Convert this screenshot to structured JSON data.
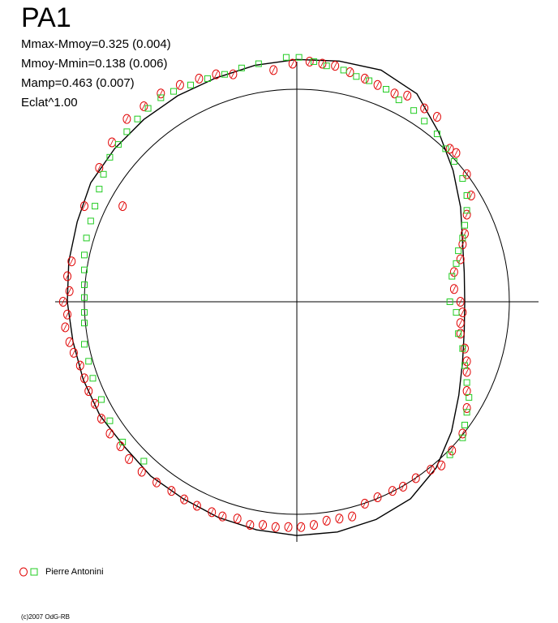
{
  "header": {
    "title": "PA1",
    "stats": [
      "Mmax-Mmoy=0.325 (0.004)",
      "Mmoy-Mmin=0.138 (0.006)",
      "Mamp=0.463 (0.007)",
      "Eclat^1.00"
    ]
  },
  "legend": {
    "label": "Pierre Antonini"
  },
  "footer": {
    "copyright": "(c)2007 OdG-RB"
  },
  "colors": {
    "series_circle": "#e00000",
    "series_square": "#22cc22",
    "axes": "#000000",
    "curve": "#000000"
  },
  "chart_data": {
    "type": "scatter",
    "projection": "polar",
    "reference_circle_radius": 1.0,
    "series": [
      {
        "name": "Pierre Antonini",
        "marker": "circle",
        "color": "#e00000",
        "points": [
          [
            -0.11,
            1.09
          ],
          [
            -0.02,
            1.12
          ],
          [
            0.06,
            1.13
          ],
          [
            0.12,
            1.12
          ],
          [
            0.18,
            1.11
          ],
          [
            0.25,
            1.08
          ],
          [
            -0.3,
            1.07
          ],
          [
            0.32,
            1.05
          ],
          [
            0.38,
            1.02
          ],
          [
            0.46,
            0.98
          ],
          [
            0.52,
            0.97
          ],
          [
            0.6,
            0.91
          ],
          [
            0.66,
            0.87
          ],
          [
            0.72,
            0.72
          ],
          [
            0.75,
            0.7
          ],
          [
            0.8,
            0.6
          ],
          [
            0.82,
            0.5
          ],
          [
            0.8,
            0.41
          ],
          [
            0.79,
            0.32
          ],
          [
            0.78,
            0.27
          ],
          [
            0.77,
            0.2
          ],
          [
            0.74,
            0.14
          ],
          [
            0.74,
            0.06
          ],
          [
            0.77,
            0.0
          ],
          [
            0.78,
            -0.05
          ],
          [
            0.77,
            -0.1
          ],
          [
            0.77,
            -0.15
          ],
          [
            0.79,
            -0.22
          ],
          [
            0.8,
            -0.28
          ],
          [
            0.8,
            -0.33
          ],
          [
            0.8,
            -0.42
          ],
          [
            0.8,
            -0.5
          ],
          [
            0.78,
            -0.62
          ],
          [
            0.73,
            -0.7
          ],
          [
            0.68,
            -0.77
          ],
          [
            0.63,
            -0.79
          ],
          [
            0.56,
            -0.83
          ],
          [
            0.5,
            -0.87
          ],
          [
            0.45,
            -0.89
          ],
          [
            0.38,
            -0.92
          ],
          [
            0.32,
            -0.95
          ],
          [
            0.26,
            -1.01
          ],
          [
            0.2,
            -1.02
          ],
          [
            0.14,
            -1.03
          ],
          [
            0.08,
            -1.05
          ],
          [
            0.02,
            -1.06
          ],
          [
            -0.04,
            -1.06
          ],
          [
            -0.1,
            -1.06
          ],
          [
            -0.16,
            -1.05
          ],
          [
            -0.22,
            -1.05
          ],
          [
            -0.28,
            -1.02
          ],
          [
            -0.35,
            -1.01
          ],
          [
            -0.4,
            -0.99
          ],
          [
            -0.47,
            -0.96
          ],
          [
            -0.53,
            -0.93
          ],
          [
            -0.59,
            -0.89
          ],
          [
            -0.66,
            -0.85
          ],
          [
            -0.73,
            -0.8
          ],
          [
            -0.79,
            -0.74
          ],
          [
            -0.83,
            -0.68
          ],
          [
            -0.88,
            -0.62
          ],
          [
            -0.92,
            -0.55
          ],
          [
            -0.95,
            -0.48
          ],
          [
            -0.98,
            -0.42
          ],
          [
            -1.0,
            -0.36
          ],
          [
            -1.02,
            -0.3
          ],
          [
            -1.05,
            -0.24
          ],
          [
            -1.07,
            -0.19
          ],
          [
            -1.09,
            -0.12
          ],
          [
            -1.08,
            -0.06
          ],
          [
            -1.1,
            0.0
          ],
          [
            -1.07,
            0.05
          ],
          [
            -1.08,
            0.12
          ],
          [
            -1.06,
            0.19
          ],
          [
            -1.0,
            0.45
          ],
          [
            -0.82,
            0.45
          ],
          [
            -0.93,
            0.63
          ],
          [
            -0.87,
            0.75
          ],
          [
            -0.8,
            0.86
          ],
          [
            -0.72,
            0.92
          ],
          [
            -0.64,
            0.98
          ],
          [
            -0.55,
            1.02
          ],
          [
            -0.46,
            1.05
          ],
          [
            -0.38,
            1.07
          ]
        ]
      },
      {
        "name": "",
        "marker": "square",
        "color": "#22cc22",
        "points": [
          [
            -0.18,
            1.12
          ],
          [
            -0.05,
            1.15
          ],
          [
            0.01,
            1.15
          ],
          [
            0.08,
            1.13
          ],
          [
            0.14,
            1.11
          ],
          [
            0.22,
            1.09
          ],
          [
            0.28,
            1.06
          ],
          [
            0.34,
            1.04
          ],
          [
            0.42,
            1.0
          ],
          [
            0.48,
            0.95
          ],
          [
            0.55,
            0.9
          ],
          [
            0.6,
            0.85
          ],
          [
            0.66,
            0.79
          ],
          [
            0.7,
            0.72
          ],
          [
            0.74,
            0.66
          ],
          [
            0.78,
            0.58
          ],
          [
            0.8,
            0.5
          ],
          [
            0.8,
            0.43
          ],
          [
            0.79,
            0.36
          ],
          [
            0.78,
            0.3
          ],
          [
            0.76,
            0.24
          ],
          [
            0.75,
            0.18
          ],
          [
            0.73,
            0.12
          ],
          [
            0.72,
            0.0
          ],
          [
            0.75,
            -0.05
          ],
          [
            0.76,
            -0.15
          ],
          [
            0.78,
            -0.22
          ],
          [
            0.79,
            -0.3
          ],
          [
            0.8,
            -0.38
          ],
          [
            0.81,
            -0.45
          ],
          [
            0.8,
            -0.52
          ],
          [
            0.79,
            -0.58
          ],
          [
            0.78,
            -0.64
          ],
          [
            0.72,
            -0.72
          ],
          [
            -0.26,
            1.1
          ],
          [
            -0.34,
            1.07
          ],
          [
            -0.42,
            1.05
          ],
          [
            -0.5,
            1.02
          ],
          [
            -0.58,
            0.99
          ],
          [
            -0.64,
            0.96
          ],
          [
            -0.7,
            0.91
          ],
          [
            -0.75,
            0.86
          ],
          [
            -0.8,
            0.8
          ],
          [
            -0.84,
            0.74
          ],
          [
            -0.88,
            0.68
          ],
          [
            -0.91,
            0.6
          ],
          [
            -0.93,
            0.53
          ],
          [
            -0.95,
            0.45
          ],
          [
            -0.97,
            0.38
          ],
          [
            -0.99,
            0.3
          ],
          [
            -1.0,
            0.22
          ],
          [
            -1.0,
            0.15
          ],
          [
            -1.0,
            0.08
          ],
          [
            -1.0,
            0.02
          ],
          [
            -1.0,
            -0.05
          ],
          [
            -1.0,
            -0.1
          ],
          [
            -1.0,
            -0.2
          ],
          [
            -0.98,
            -0.28
          ],
          [
            -0.96,
            -0.36
          ],
          [
            -0.92,
            -0.46
          ],
          [
            -0.88,
            -0.56
          ],
          [
            -0.82,
            -0.66
          ],
          [
            -0.72,
            -0.75
          ]
        ]
      }
    ],
    "fit_curve": [
      [
        0,
        1.14
      ],
      [
        10,
        1.15
      ],
      [
        20,
        1.16
      ],
      [
        30,
        1.13
      ],
      [
        40,
        1.04
      ],
      [
        50,
        0.96
      ],
      [
        60,
        0.89
      ],
      [
        70,
        0.83
      ],
      [
        80,
        0.8
      ],
      [
        90,
        0.79
      ],
      [
        100,
        0.8
      ],
      [
        110,
        0.83
      ],
      [
        120,
        0.88
      ],
      [
        130,
        0.95
      ],
      [
        140,
        1.02
      ],
      [
        150,
        1.07
      ],
      [
        160,
        1.09
      ],
      [
        170,
        1.1
      ],
      [
        180,
        1.1
      ],
      [
        190,
        1.09
      ],
      [
        200,
        1.08
      ],
      [
        210,
        1.07
      ],
      [
        220,
        1.07
      ],
      [
        230,
        1.06
      ],
      [
        240,
        1.07
      ],
      [
        250,
        1.07
      ],
      [
        260,
        1.07
      ],
      [
        270,
        1.08
      ],
      [
        280,
        1.09
      ],
      [
        290,
        1.1
      ],
      [
        300,
        1.12
      ],
      [
        310,
        1.12
      ],
      [
        320,
        1.12
      ],
      [
        330,
        1.12
      ],
      [
        340,
        1.12
      ],
      [
        350,
        1.13
      ],
      [
        360,
        1.14
      ]
    ]
  }
}
